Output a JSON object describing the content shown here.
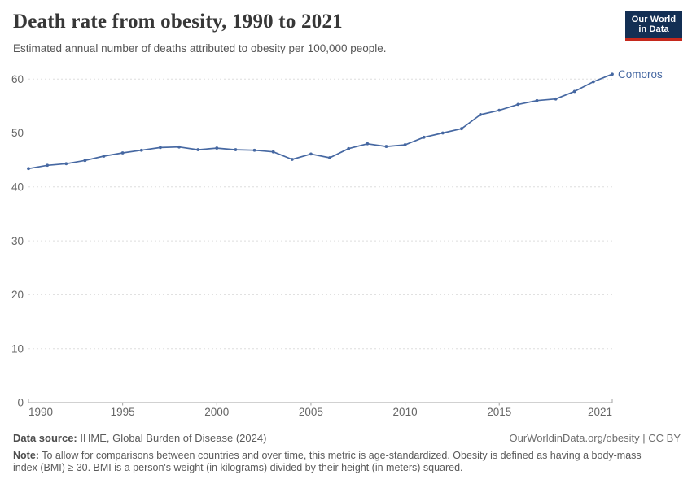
{
  "header": {
    "title": "Death rate from obesity, 1990 to 2021",
    "subtitle": "Estimated annual number of deaths attributed to obesity per 100,000 people."
  },
  "logo": {
    "line1": "Our World",
    "line2": "in Data",
    "bg_color": "#132F54",
    "accent_color": "#C5281C"
  },
  "chart_data": {
    "type": "line",
    "title": "Death rate from obesity, 1990 to 2021",
    "xlabel": "",
    "ylabel": "",
    "x": [
      1990,
      1991,
      1992,
      1993,
      1994,
      1995,
      1996,
      1997,
      1998,
      1999,
      2000,
      2001,
      2002,
      2003,
      2004,
      2005,
      2006,
      2007,
      2008,
      2009,
      2010,
      2011,
      2012,
      2013,
      2014,
      2015,
      2016,
      2017,
      2018,
      2019,
      2020,
      2021
    ],
    "series": [
      {
        "name": "Comoros",
        "color": "#4668A2",
        "values": [
          43.4,
          44.0,
          44.3,
          44.9,
          45.7,
          46.3,
          46.8,
          47.3,
          47.4,
          46.9,
          47.2,
          46.9,
          46.8,
          46.5,
          45.1,
          46.1,
          45.4,
          47.1,
          48.0,
          47.5,
          47.8,
          49.2,
          50.0,
          50.8,
          53.4,
          54.2,
          55.3,
          56.0,
          56.3,
          57.7,
          59.5,
          60.9
        ]
      }
    ],
    "x_ticks": [
      1990,
      1995,
      2000,
      2005,
      2010,
      2015,
      2021
    ],
    "y_ticks": [
      0,
      10,
      20,
      30,
      40,
      50,
      60
    ],
    "xlim": [
      1990,
      2021
    ],
    "ylim": [
      0,
      62.6
    ],
    "grid": "horizontal-dashed",
    "legend_position": "end-of-line-label",
    "colors": {
      "gridline": "#dddddd",
      "axis": "#a3a3a3",
      "tick_label": "#666666"
    }
  },
  "footer": {
    "datasource_label": "Data source:",
    "datasource_text": " IHME, Global Burden of Disease (2024)",
    "link_text": "OurWorldinData.org/obesity | CC BY",
    "note_label": "Note:",
    "note_text": " To allow for comparisons between countries and over time, this metric is age-standardized. Obesity is defined as having a body-mass index (BMI) ≥ 30. BMI is a person's weight (in kilograms) divided by their height (in meters) squared."
  }
}
